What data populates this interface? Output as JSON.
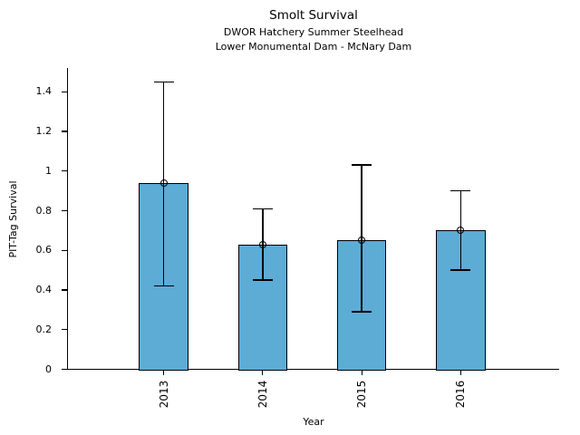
{
  "chart_data": {
    "type": "bar",
    "title": "Smolt Survival",
    "subtitle1": "DWOR Hatchery Summer Steelhead",
    "subtitle2": "Lower Monumental Dam - McNary Dam",
    "xlabel": "Year",
    "ylabel": "PIT-Tag Survival",
    "categories": [
      "2013",
      "2014",
      "2015",
      "2016"
    ],
    "values": [
      0.94,
      0.63,
      0.65,
      0.7
    ],
    "error_low": [
      0.42,
      0.45,
      0.29,
      0.5
    ],
    "error_high": [
      1.45,
      0.81,
      1.03,
      0.9
    ],
    "yticks": [
      0,
      0.2,
      0.4,
      0.6,
      0.8,
      1,
      1.2,
      1.4
    ],
    "ytick_labels": [
      "0",
      "0.2",
      "0.4",
      "0.6",
      "0.8",
      "1",
      "1.2",
      "1.4"
    ],
    "ylim": [
      0,
      1.52
    ],
    "grid": false,
    "marker": "open-circle",
    "bar_color": "#5CACD6",
    "bar_edge_color": "#000000",
    "error_color": "#000000",
    "text_color": "#000000",
    "background_color": "#ffffff"
  }
}
